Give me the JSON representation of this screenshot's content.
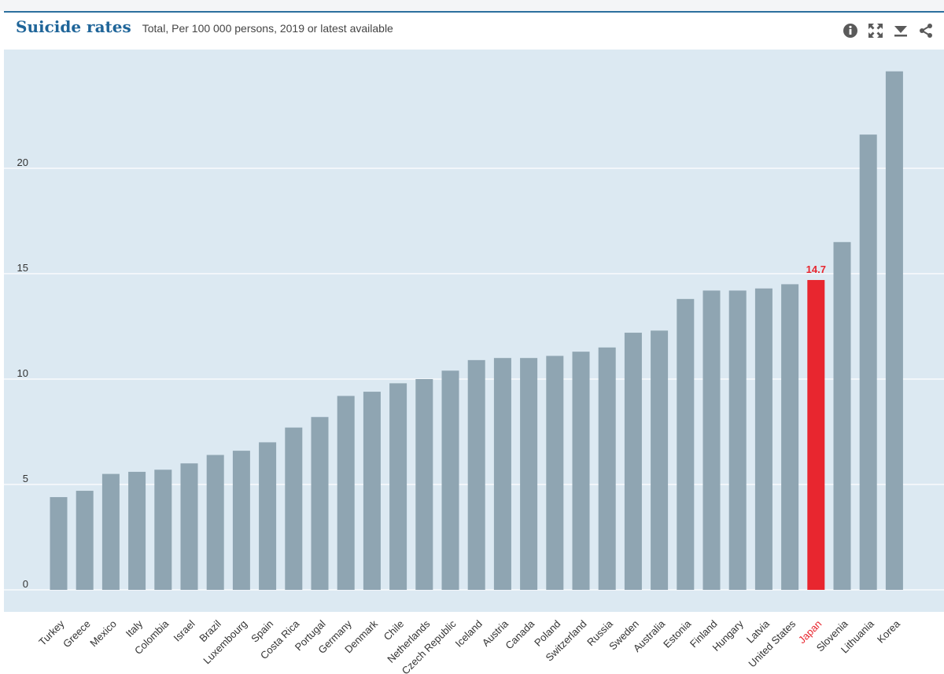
{
  "header": {
    "title": "Suicide rates",
    "subtitle": "Total, Per 100 000 persons, 2019 or latest available"
  },
  "toolbar": {
    "icons": [
      "info-icon",
      "expand-icon",
      "download-icon",
      "share-icon"
    ]
  },
  "colors": {
    "bar": "#8fa5b2",
    "highlight": "#e8262f",
    "plot_background": "#dce9f2",
    "title": "#1f6599"
  },
  "chart_data": {
    "type": "bar",
    "categories": [
      "Turkey",
      "Greece",
      "Mexico",
      "Italy",
      "Colombia",
      "Israel",
      "Brazil",
      "Luxembourg",
      "Spain",
      "Costa Rica",
      "Portugal",
      "Germany",
      "Denmark",
      "Chile",
      "Netherlands",
      "Czech Republic",
      "Iceland",
      "Austria",
      "Canada",
      "Poland",
      "Switzerland",
      "Russia",
      "Sweden",
      "Australia",
      "Estonia",
      "Finland",
      "Hungary",
      "Latvia",
      "United States",
      "Japan",
      "Slovenia",
      "Lithuania",
      "Korea"
    ],
    "values": [
      4.4,
      4.7,
      5.5,
      5.6,
      5.7,
      6.0,
      6.4,
      6.6,
      7.0,
      7.7,
      8.2,
      9.2,
      9.4,
      9.8,
      10.0,
      10.4,
      10.9,
      11.0,
      11.0,
      11.1,
      11.3,
      11.5,
      12.2,
      12.3,
      13.8,
      14.2,
      14.2,
      14.3,
      14.5,
      14.7,
      16.5,
      21.6,
      24.6
    ],
    "highlight_category": "Japan",
    "highlight_label": "14.7",
    "yticks": [
      0,
      5,
      10,
      15,
      20
    ],
    "ylim": [
      0,
      26
    ],
    "grid": true,
    "xlabel": "",
    "ylabel": ""
  }
}
